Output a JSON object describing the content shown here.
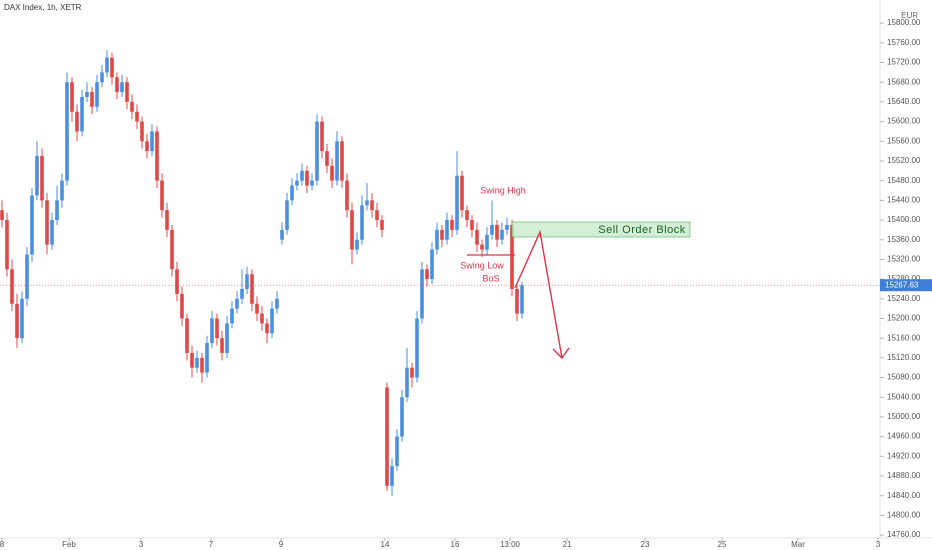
{
  "chart_data": {
    "type": "candlestick",
    "title": "DAX Index, 1h, XETR",
    "currency": "EUR",
    "up_color": "#4a8fe0",
    "down_color": "#e04848",
    "last_price": {
      "value": 15267.63,
      "label": "15267.63"
    },
    "annotations": {
      "swing_high": "Swing High",
      "swing_low": "Swing Low",
      "bos": "BoS",
      "order_block": "Sell Order Block"
    },
    "xlim": [
      -0.4,
      175.6
    ],
    "xticks": [
      {
        "value": 0,
        "label": "8"
      },
      {
        "value": 13.4,
        "label": "Feb"
      },
      {
        "value": 27.8,
        "label": "3"
      },
      {
        "value": 41.8,
        "label": "7"
      },
      {
        "value": 55.8,
        "label": "9"
      },
      {
        "value": 76.6,
        "label": "14"
      },
      {
        "value": 90.6,
        "label": "16"
      },
      {
        "value": 101.6,
        "label": "13:00"
      },
      {
        "value": 113,
        "label": "21"
      },
      {
        "value": 128.6,
        "label": "23"
      },
      {
        "value": 144,
        "label": "25"
      },
      {
        "value": 159.2,
        "label": "Mar"
      },
      {
        "value": 175.2,
        "label": "3"
      }
    ],
    "ylim": [
      14750,
      15847
    ],
    "yticks": [
      {
        "value": 14760,
        "label": "14760.00"
      },
      {
        "value": 14800,
        "label": "14800.00"
      },
      {
        "value": 14840,
        "label": "14840.00"
      },
      {
        "value": 14880,
        "label": "14880.00"
      },
      {
        "value": 14920,
        "label": "14920.00"
      },
      {
        "value": 14960,
        "label": "14960.00"
      },
      {
        "value": 15000,
        "label": "15000.00"
      },
      {
        "value": 15040,
        "label": "15040.00"
      },
      {
        "value": 15080,
        "label": "15080.00"
      },
      {
        "value": 15120,
        "label": "15120.00"
      },
      {
        "value": 15160,
        "label": "15160.00"
      },
      {
        "value": 15200,
        "label": "15200.00"
      },
      {
        "value": 15240,
        "label": "15240.00"
      },
      {
        "value": 15280,
        "label": "15280.00"
      },
      {
        "value": 15320,
        "label": "15320.00"
      },
      {
        "value": 15360,
        "label": "15360.00"
      },
      {
        "value": 15400,
        "label": "15400.00"
      },
      {
        "value": 15440,
        "label": "15440.00"
      },
      {
        "value": 15480,
        "label": "15480.00"
      },
      {
        "value": 15520,
        "label": "15520.00"
      },
      {
        "value": 15560,
        "label": "15560.00"
      },
      {
        "value": 15600,
        "label": "15600.00"
      },
      {
        "value": 15640,
        "label": "15640.00"
      },
      {
        "value": 15680,
        "label": "15680.00"
      },
      {
        "value": 15720,
        "label": "15720.00"
      },
      {
        "value": 15760,
        "label": "15760.00"
      },
      {
        "value": 15800,
        "label": "15800.00"
      }
    ],
    "ohlc": [
      [
        15420,
        15440,
        15385,
        15400
      ],
      [
        15400,
        15415,
        15285,
        15300
      ],
      [
        15300,
        15320,
        15215,
        15230
      ],
      [
        15230,
        15250,
        15140,
        15160
      ],
      [
        15160,
        15255,
        15150,
        15240
      ],
      [
        15240,
        15345,
        15225,
        15330
      ],
      [
        15330,
        15465,
        15315,
        15450
      ],
      [
        15450,
        15560,
        15440,
        15530
      ],
      [
        15530,
        15545,
        15425,
        15440
      ],
      [
        15440,
        15455,
        15330,
        15350
      ],
      [
        15350,
        15415,
        15340,
        15400
      ],
      [
        15400,
        15470,
        15390,
        15440
      ],
      [
        15440,
        15495,
        15425,
        15480
      ],
      [
        15480,
        15700,
        15470,
        15680
      ],
      [
        15680,
        15690,
        15600,
        15620
      ],
      [
        15620,
        15635,
        15560,
        15580
      ],
      [
        15580,
        15665,
        15570,
        15650
      ],
      [
        15650,
        15680,
        15640,
        15660
      ],
      [
        15660,
        15670,
        15615,
        15630
      ],
      [
        15630,
        15695,
        15620,
        15680
      ],
      [
        15680,
        15715,
        15670,
        15700
      ],
      [
        15700,
        15745,
        15690,
        15730
      ],
      [
        15730,
        15740,
        15675,
        15690
      ],
      [
        15690,
        15700,
        15645,
        15660
      ],
      [
        15660,
        15695,
        15650,
        15680
      ],
      [
        15680,
        15690,
        15625,
        15640
      ],
      [
        15640,
        15655,
        15605,
        15620
      ],
      [
        15620,
        15635,
        15585,
        15600
      ],
      [
        15600,
        15610,
        15545,
        15560
      ],
      [
        15560,
        15575,
        15525,
        15540
      ],
      [
        15540,
        15595,
        15530,
        15580
      ],
      [
        15580,
        15590,
        15465,
        15480
      ],
      [
        15480,
        15495,
        15405,
        15420
      ],
      [
        15420,
        15435,
        15365,
        15380
      ],
      [
        15380,
        15390,
        15285,
        15300
      ],
      [
        15300,
        15315,
        15235,
        15250
      ],
      [
        15250,
        15265,
        15185,
        15200
      ],
      [
        15200,
        15210,
        15115,
        15130
      ],
      [
        15130,
        15145,
        15080,
        15100
      ],
      [
        15100,
        15135,
        15090,
        15120
      ],
      [
        15120,
        15130,
        15070,
        15090
      ],
      [
        15090,
        15165,
        15080,
        15150
      ],
      [
        15150,
        15215,
        15140,
        15200
      ],
      [
        15200,
        15210,
        15145,
        15160
      ],
      [
        15160,
        15175,
        15115,
        15130
      ],
      [
        15130,
        15205,
        15120,
        15190
      ],
      [
        15190,
        15235,
        15180,
        15220
      ],
      [
        15220,
        15255,
        15210,
        15240
      ],
      [
        15240,
        15300,
        15230,
        15260
      ],
      [
        15260,
        15305,
        15250,
        15290
      ],
      [
        15290,
        15300,
        15215,
        15230
      ],
      [
        15230,
        15245,
        15195,
        15210
      ],
      [
        15210,
        15225,
        15175,
        15190
      ],
      [
        15190,
        15200,
        15150,
        15170
      ],
      [
        15170,
        15235,
        15160,
        15220
      ],
      [
        15220,
        15255,
        15210,
        15240
      ],
      [
        15360,
        15395,
        15350,
        15380
      ],
      [
        15380,
        15455,
        15370,
        15440
      ],
      [
        15440,
        15485,
        15430,
        15470
      ],
      [
        15470,
        15495,
        15460,
        15480
      ],
      [
        15480,
        15515,
        15470,
        15500
      ],
      [
        15500,
        15510,
        15455,
        15470
      ],
      [
        15470,
        15495,
        15460,
        15480
      ],
      [
        15480,
        15615,
        15470,
        15600
      ],
      [
        15600,
        15610,
        15525,
        15540
      ],
      [
        15540,
        15555,
        15495,
        15510
      ],
      [
        15510,
        15525,
        15465,
        15480
      ],
      [
        15480,
        15580,
        15470,
        15560
      ],
      [
        15560,
        15570,
        15465,
        15480
      ],
      [
        15480,
        15495,
        15405,
        15420
      ],
      [
        15420,
        15435,
        15310,
        15340
      ],
      [
        15340,
        15375,
        15330,
        15360
      ],
      [
        15360,
        15450,
        15350,
        15430
      ],
      [
        15430,
        15475,
        15420,
        15440
      ],
      [
        15440,
        15455,
        15405,
        15420
      ],
      [
        15420,
        15435,
        15385,
        15400
      ],
      [
        15400,
        15410,
        15365,
        15380
      ],
      [
        15060,
        15070,
        14850,
        14860
      ],
      [
        14860,
        14915,
        14840,
        14900
      ],
      [
        14900,
        14975,
        14890,
        14960
      ],
      [
        14960,
        15055,
        14950,
        15040
      ],
      [
        15040,
        15140,
        15030,
        15100
      ],
      [
        15100,
        15110,
        15060,
        15080
      ],
      [
        15080,
        15215,
        15070,
        15200
      ],
      [
        15200,
        15315,
        15190,
        15300
      ],
      [
        15300,
        15310,
        15265,
        15280
      ],
      [
        15280,
        15355,
        15270,
        15340
      ],
      [
        15340,
        15395,
        15330,
        15380
      ],
      [
        15380,
        15390,
        15345,
        15360
      ],
      [
        15360,
        15415,
        15350,
        15400
      ],
      [
        15400,
        15410,
        15365,
        15380
      ],
      [
        15380,
        15540,
        15370,
        15490
      ],
      [
        15490,
        15500,
        15405,
        15420
      ],
      [
        15420,
        15430,
        15385,
        15400
      ],
      [
        15400,
        15410,
        15365,
        15380
      ],
      [
        15380,
        15395,
        15335,
        15350
      ],
      [
        15350,
        15360,
        15325,
        15340
      ],
      [
        15340,
        15385,
        15330,
        15370
      ],
      [
        15370,
        15440,
        15360,
        15390
      ],
      [
        15390,
        15400,
        15345,
        15360
      ],
      [
        15360,
        15395,
        15350,
        15380
      ],
      [
        15380,
        15405,
        15370,
        15390
      ],
      [
        15390,
        15400,
        15245,
        15260
      ],
      [
        15260,
        15270,
        15195,
        15210
      ],
      [
        15210,
        15275,
        15200,
        15267.63
      ]
    ]
  }
}
